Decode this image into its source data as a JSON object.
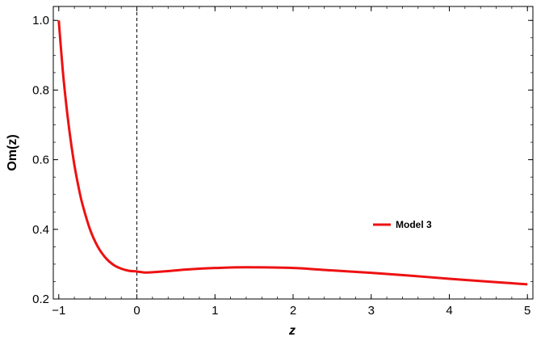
{
  "chart_data": {
    "type": "line",
    "title": "",
    "xlabel": "z",
    "ylabel": "Om(z)",
    "xlim": [
      -1.07,
      5.07
    ],
    "ylim": [
      0.2,
      1.04
    ],
    "xticks": [
      -1,
      0,
      1,
      2,
      3,
      4,
      5
    ],
    "xtick_labels": [
      "−1",
      "0",
      "1",
      "2",
      "3",
      "4",
      "5"
    ],
    "yticks": [
      0.2,
      0.4,
      0.6,
      0.8,
      1.0
    ],
    "ytick_labels": [
      "0.2",
      "0.4",
      "0.6",
      "0.8",
      "1.0"
    ],
    "grid": false,
    "legend_position": "right",
    "vertical_line": {
      "x": 0,
      "style": "dashed"
    },
    "series": [
      {
        "name": "Model 3",
        "color": "#ee1111",
        "x": [
          -1.0,
          -0.95,
          -0.9,
          -0.85,
          -0.8,
          -0.75,
          -0.7,
          -0.6,
          -0.5,
          -0.4,
          -0.3,
          -0.2,
          -0.1,
          0.0,
          0.1,
          0.2,
          0.4,
          0.6,
          0.8,
          1.0,
          1.4,
          2.0,
          2.5,
          3.0,
          3.5,
          4.0,
          4.5,
          5.0
        ],
        "y": [
          1.0,
          0.86,
          0.75,
          0.66,
          0.585,
          0.525,
          0.475,
          0.4,
          0.35,
          0.318,
          0.298,
          0.287,
          0.281,
          0.279,
          0.276,
          0.277,
          0.28,
          0.284,
          0.287,
          0.289,
          0.291,
          0.289,
          0.282,
          0.275,
          0.267,
          0.258,
          0.25,
          0.242
        ]
      }
    ]
  }
}
